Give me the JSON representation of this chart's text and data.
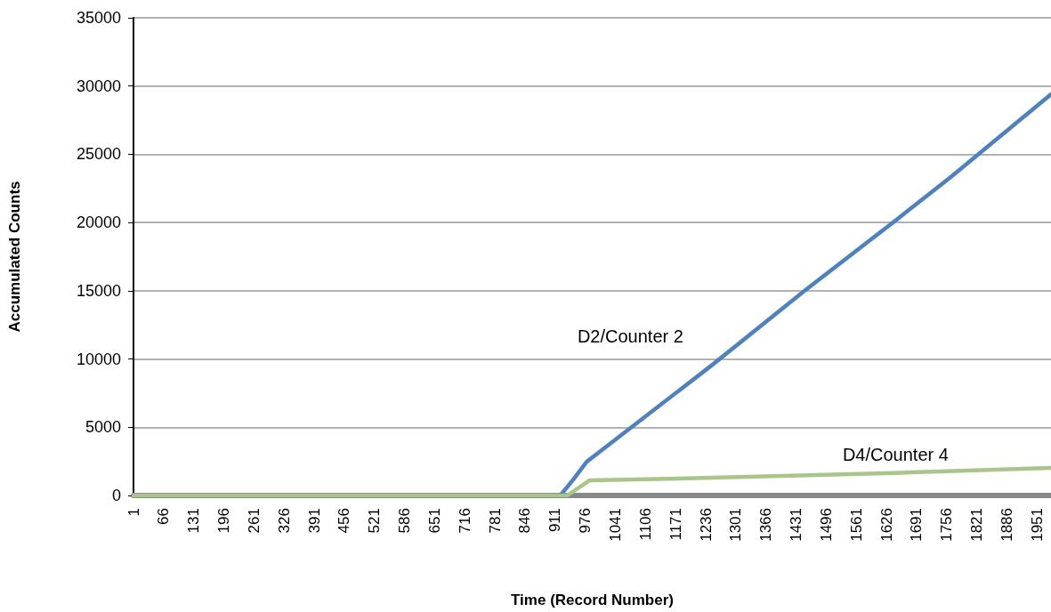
{
  "chart_data": {
    "type": "line",
    "xlabel": "Time (Record Number)",
    "ylabel": "Accumulated Counts",
    "xlim": [
      1,
      1981
    ],
    "xticks": [
      1,
      66,
      131,
      196,
      261,
      326,
      391,
      456,
      521,
      586,
      651,
      716,
      781,
      846,
      911,
      976,
      1041,
      1106,
      1171,
      1236,
      1301,
      1366,
      1431,
      1496,
      1561,
      1626,
      1691,
      1756,
      1821,
      1886,
      1951
    ],
    "ylim": [
      0,
      35000
    ],
    "yticks": [
      0,
      5000,
      10000,
      15000,
      20000,
      25000,
      30000,
      35000
    ],
    "grid": "y",
    "marker": "none",
    "line_style": "solid",
    "series": [
      {
        "name": "D2/Counter 2",
        "color": "#4f81bd",
        "x": [
          1,
          922,
          950,
          979,
          1252,
          1450,
          1641,
          1763,
          1981
        ],
        "values": [
          0,
          0,
          1170,
          2470,
          9620,
          15020,
          20030,
          23280,
          29390
        ]
      },
      {
        "name": "D4/Counter 4",
        "color": "#a9c58a",
        "x": [
          1,
          937,
          985,
          1252,
          1641,
          1981
        ],
        "values": [
          0,
          0,
          1100,
          1300,
          1650,
          2020
        ]
      }
    ]
  }
}
